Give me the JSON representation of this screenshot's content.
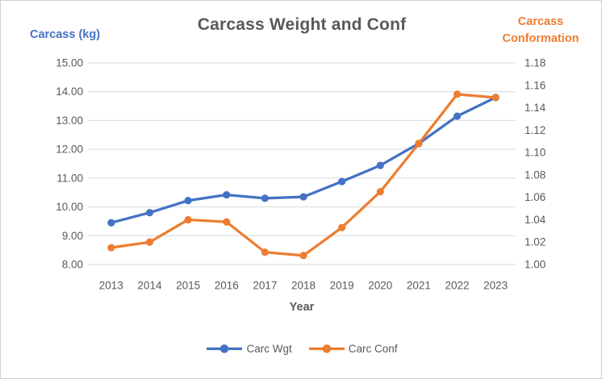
{
  "chart_data": {
    "type": "line",
    "title": "Carcass Weight and Conf",
    "xlabel": "Year",
    "x": [
      2013,
      2014,
      2015,
      2016,
      2017,
      2018,
      2019,
      2020,
      2021,
      2022,
      2023
    ],
    "grid": true,
    "legend_position": "bottom",
    "background_color": "#FFFFFF",
    "text_color": "#595959",
    "gridline_color": "#D9D9D9",
    "left_axis": {
      "title": "Carcass (kg)",
      "color": "#4472C4",
      "min": 8,
      "max": 15,
      "step": 1,
      "ticks": [
        "8.00",
        "9.00",
        "10.00",
        "11.00",
        "12.00",
        "13.00",
        "14.00",
        "15.00"
      ]
    },
    "right_axis": {
      "title": "Carcass Conformation",
      "color": "#ED7D31",
      "min": 1.0,
      "max": 1.18,
      "step": 0.02,
      "ticks": [
        "1.00",
        "1.02",
        "1.04",
        "1.06",
        "1.08",
        "1.10",
        "1.12",
        "1.14",
        "1.16",
        "1.18"
      ]
    },
    "series": [
      {
        "name": "Carc Wgt",
        "axis": "left",
        "color": "#4472C4",
        "values": [
          9.45,
          9.8,
          10.22,
          10.42,
          10.3,
          10.35,
          10.88,
          11.44,
          12.2,
          13.15,
          13.8
        ]
      },
      {
        "name": "Carc Conf",
        "axis": "right",
        "color": "#ED7D31",
        "values": [
          1.015,
          1.02,
          1.04,
          1.038,
          1.011,
          1.008,
          1.033,
          1.065,
          1.108,
          1.152,
          1.149
        ]
      }
    ]
  }
}
